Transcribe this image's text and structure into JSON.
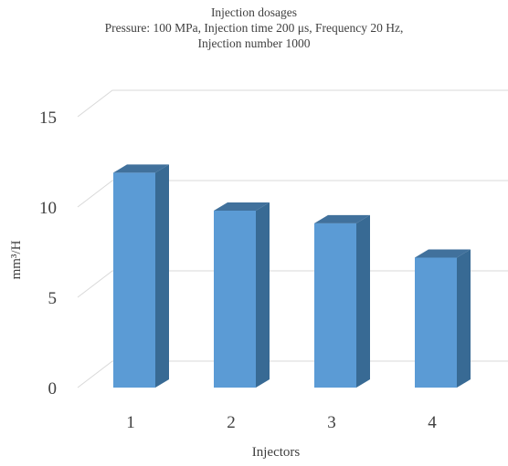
{
  "chart_data": {
    "type": "bar",
    "style": "3d-column",
    "title": "Injection dosages",
    "subtitle_lines": [
      "Pressure: 100 MPa, Injection time 200 μs, Frequency 20 Hz,",
      "Injection number 1000"
    ],
    "xlabel": "Injectors",
    "ylabel": "mm³/H",
    "categories": [
      "1",
      "2",
      "3",
      "4"
    ],
    "values": [
      11.9,
      9.8,
      9.1,
      7.2
    ],
    "ylim": [
      0,
      15
    ],
    "yticks": [
      "0",
      "5",
      "10",
      "15"
    ],
    "grid": true,
    "legend": "none",
    "colors": {
      "bar_front": "#5b9bd5",
      "bar_side": "#386a94",
      "bar_top": "#41719c",
      "grid": "#d9d9d9",
      "text": "#404040"
    }
  }
}
